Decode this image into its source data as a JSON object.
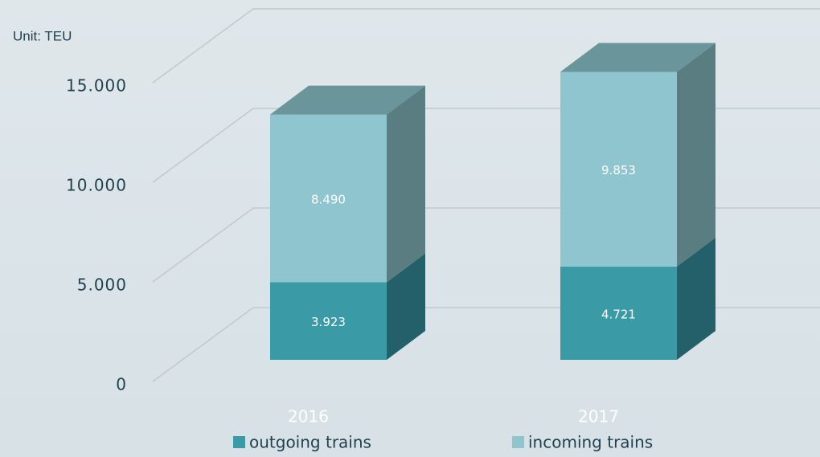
{
  "chart_data": {
    "type": "bar3d_stacked",
    "ylabel": "Unit: TEU",
    "categories": [
      "2016",
      "2017"
    ],
    "series": [
      {
        "name": "outgoing trains",
        "color": "#3a9aa6",
        "side_color": "#236069",
        "values": [
          3923,
          4721
        ],
        "value_labels": [
          "3.923",
          "4.721"
        ]
      },
      {
        "name": "incoming trains",
        "color": "#8fc5ce",
        "side_color": "#5a7d82",
        "top_color": "#6a959b",
        "values": [
          8490,
          9853
        ],
        "value_labels": [
          "8.490",
          "9.853"
        ]
      }
    ],
    "ylim": [
      0,
      15000
    ],
    "yticks": [
      0,
      {
        "value": 5000,
        "label": "5.000"
      },
      {
        "value": 10000,
        "label": "10.000"
      },
      {
        "value": 15000,
        "label": "15.000"
      }
    ],
    "grid": true
  }
}
